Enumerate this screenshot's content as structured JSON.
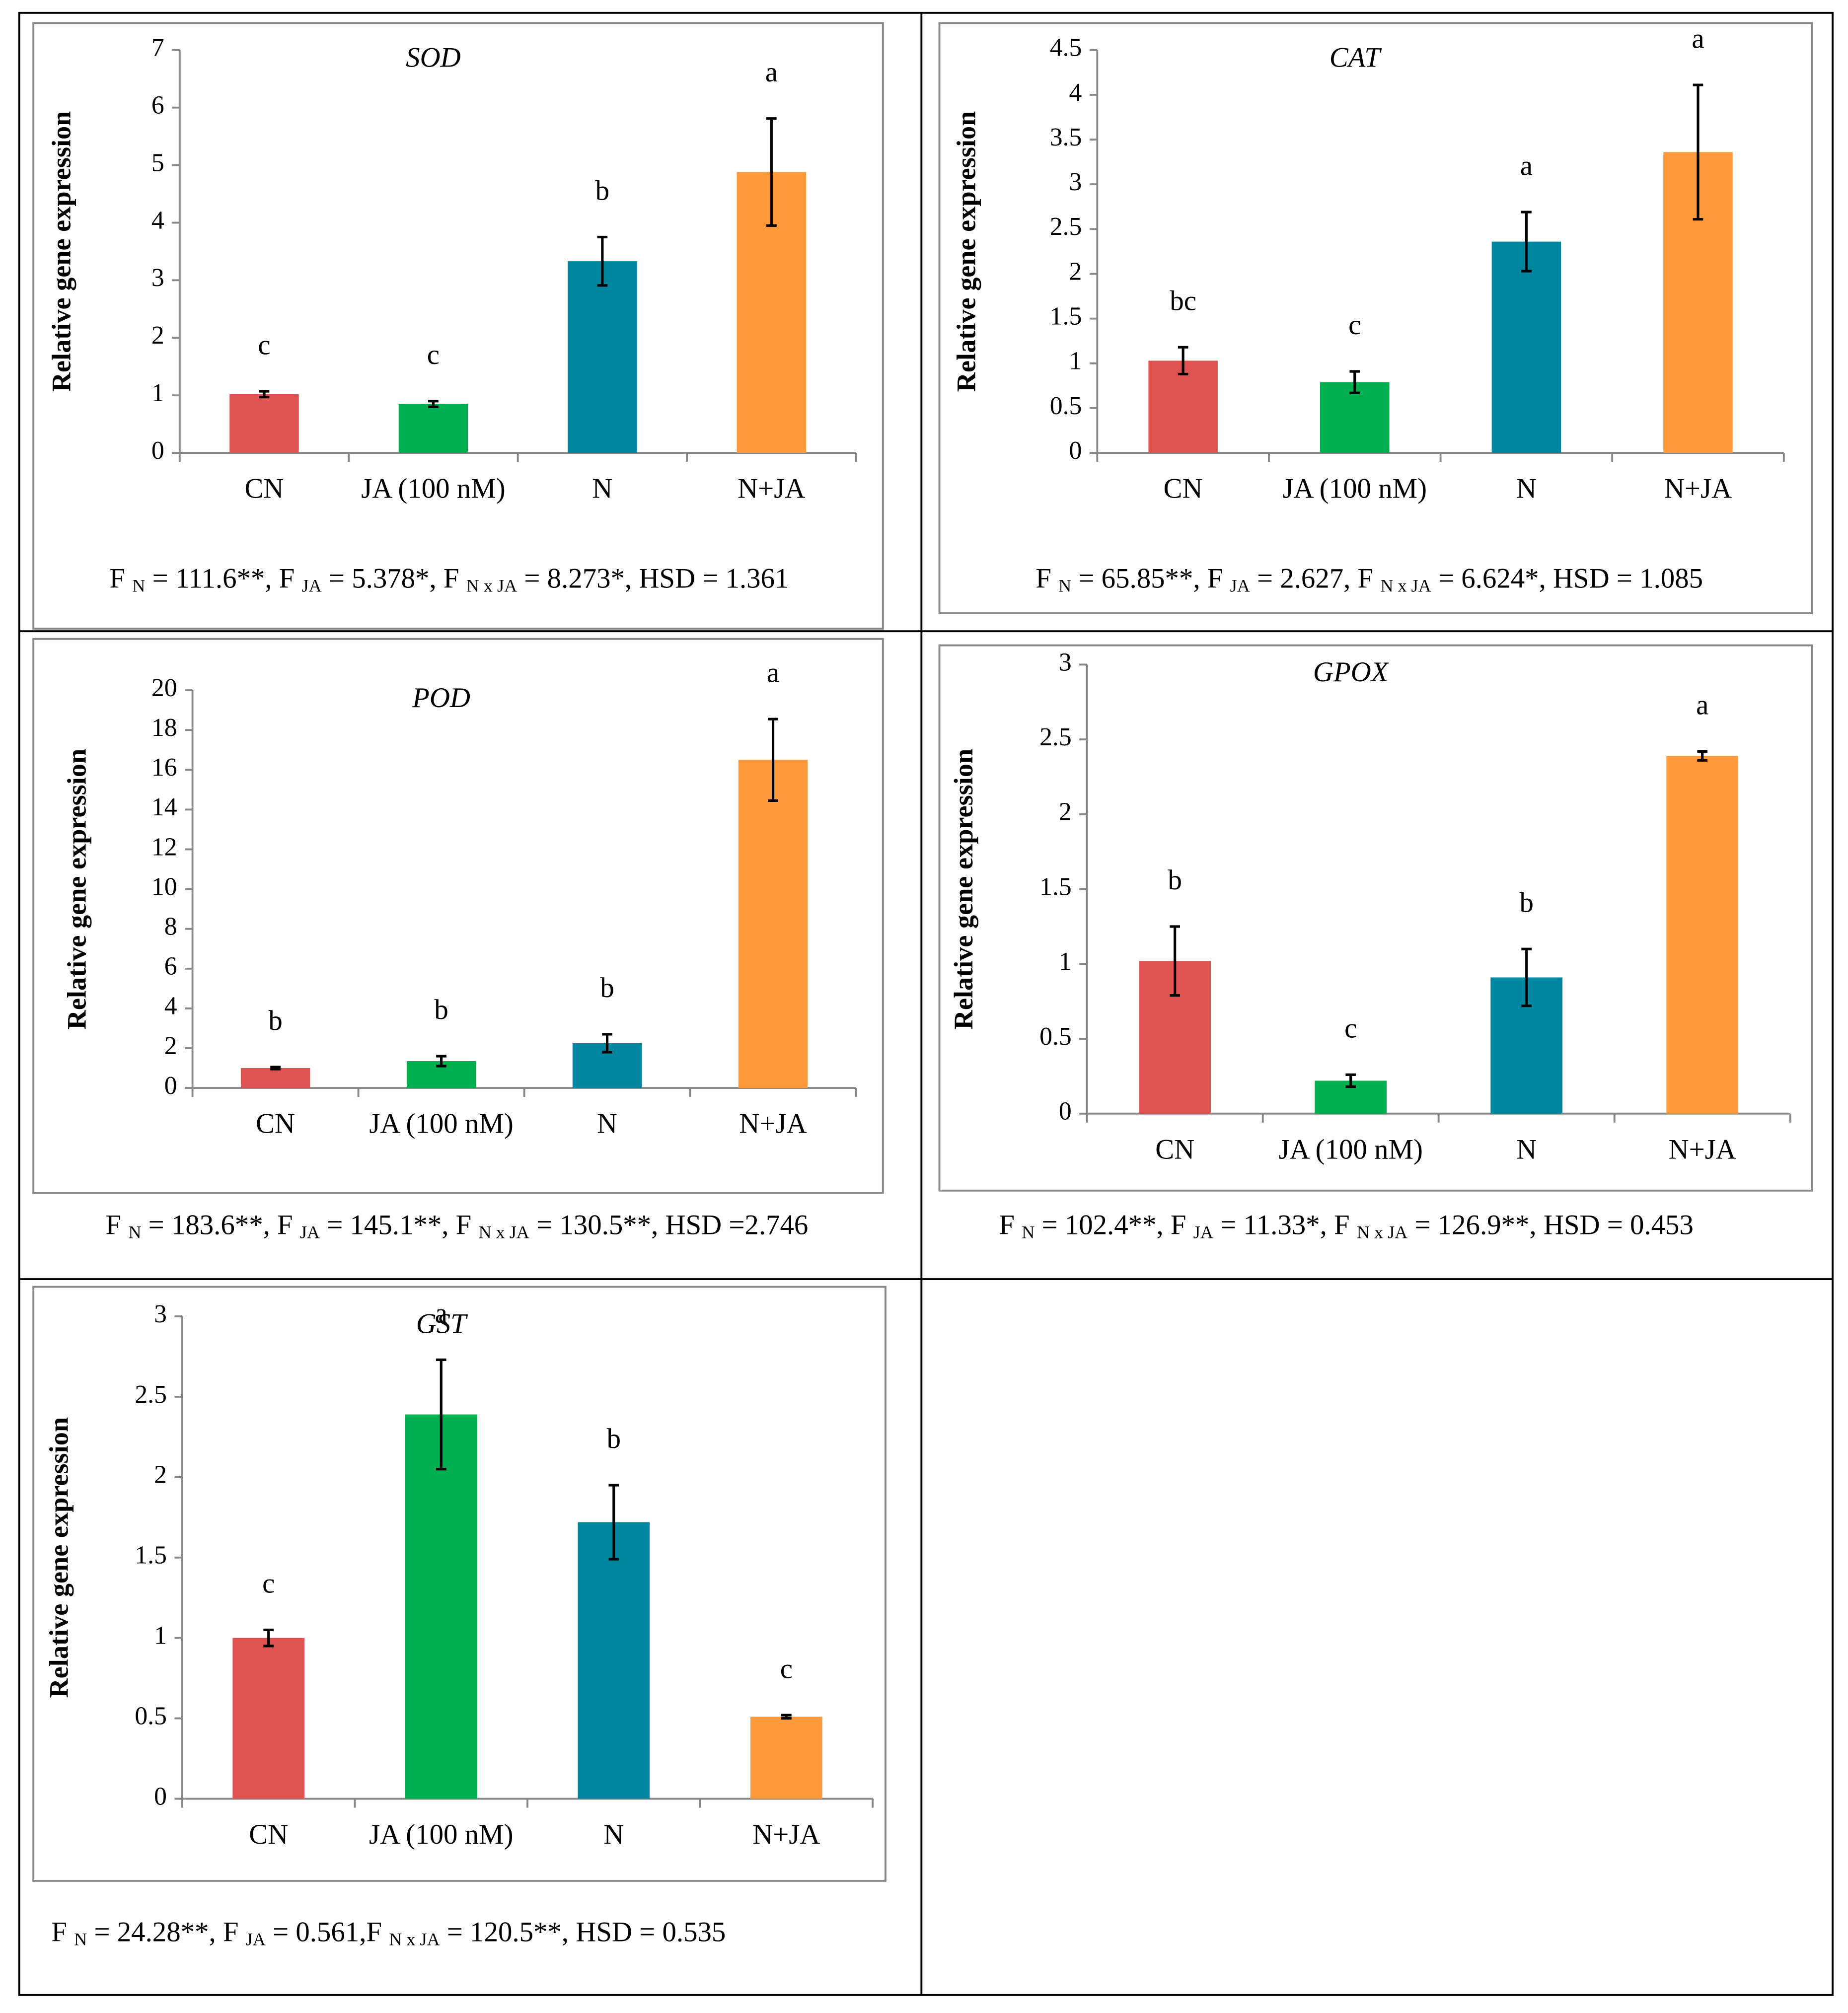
{
  "chart_data": [
    {
      "type": "bar",
      "title": "SOD",
      "y_label": "Relative gene expression",
      "categories": [
        "CN",
        "JA (100 nM)",
        "N",
        "N+JA"
      ],
      "values": [
        1.02,
        0.85,
        3.33,
        4.88
      ],
      "errors": [
        0.05,
        0.05,
        0.42,
        0.93
      ],
      "letters": [
        "c",
        "c",
        "b",
        "a"
      ],
      "colors": [
        "#df5353",
        "#00b050",
        "#00879f",
        "#ff9a3c"
      ],
      "ylim": [
        0,
        7
      ],
      "yticks": [
        0,
        1,
        2,
        3,
        4,
        5,
        6,
        7
      ],
      "stats": [
        "F ",
        "N",
        " = 111.6**, F ",
        "JA",
        " = 5.378*, F ",
        "N x JA",
        " = 8.273*, HSD = 1.361"
      ]
    },
    {
      "type": "bar",
      "title": "CAT",
      "y_label": "Relative gene expression",
      "categories": [
        "CN",
        "JA (100 nM)",
        "N",
        "N+JA"
      ],
      "values": [
        1.03,
        0.79,
        2.36,
        3.36
      ],
      "errors": [
        0.15,
        0.12,
        0.33,
        0.75
      ],
      "letters": [
        "bc",
        "c",
        "a",
        "a"
      ],
      "colors": [
        "#df5353",
        "#00b050",
        "#00879f",
        "#ff9a3c"
      ],
      "ylim": [
        0,
        4.5
      ],
      "yticks": [
        0,
        0.5,
        1,
        1.5,
        2,
        2.5,
        3,
        3.5,
        4,
        4.5
      ],
      "stats": [
        "F ",
        "N",
        " = 65.85**, F ",
        "JA",
        " = 2.627, F ",
        "N x JA",
        " = 6.624*, HSD = 1.085"
      ]
    },
    {
      "type": "bar",
      "title": "POD",
      "y_label": "Relative gene expression",
      "categories": [
        "CN",
        "JA (100 nM)",
        "N",
        "N+JA"
      ],
      "values": [
        1.0,
        1.35,
        2.25,
        16.5
      ],
      "errors": [
        0.05,
        0.25,
        0.45,
        2.05
      ],
      "letters": [
        "b",
        "b",
        "b",
        "a"
      ],
      "colors": [
        "#df5353",
        "#00b050",
        "#00879f",
        "#ff9a3c"
      ],
      "ylim": [
        0,
        20
      ],
      "yticks": [
        0,
        2,
        4,
        6,
        8,
        10,
        12,
        14,
        16,
        18,
        20
      ],
      "stats": [
        "F ",
        "N",
        " = 183.6**, F ",
        "JA",
        " = 145.1**, F ",
        "N x JA",
        " = 130.5**, HSD =2.746"
      ]
    },
    {
      "type": "bar",
      "title": "GPOX",
      "y_label": "Relative gene expression",
      "categories": [
        "CN",
        "JA (100 nM)",
        "N",
        "N+JA"
      ],
      "values": [
        1.02,
        0.22,
        0.91,
        2.39
      ],
      "errors": [
        0.23,
        0.04,
        0.19,
        0.03
      ],
      "letters": [
        "b",
        "c",
        "b",
        "a"
      ],
      "colors": [
        "#df5353",
        "#00b050",
        "#00879f",
        "#ff9a3c"
      ],
      "ylim": [
        0,
        3
      ],
      "yticks": [
        0,
        0.5,
        1,
        1.5,
        2,
        2.5,
        3
      ],
      "stats": [
        "F ",
        "N",
        " = 102.4**, F ",
        "JA",
        " = 11.33*, F ",
        "N x JA",
        " = 126.9**, HSD = 0.453"
      ]
    },
    {
      "type": "bar",
      "title": "GST",
      "y_label": "Relative gene expression",
      "categories": [
        "CN",
        "JA (100 nM)",
        "N",
        "N+JA"
      ],
      "values": [
        1.0,
        2.39,
        1.72,
        0.51
      ],
      "errors": [
        0.05,
        0.34,
        0.23,
        0.01
      ],
      "letters": [
        "c",
        "a",
        "b",
        "c"
      ],
      "colors": [
        "#df5353",
        "#00b050",
        "#00879f",
        "#ff9a3c"
      ],
      "ylim": [
        0,
        3
      ],
      "yticks": [
        0,
        0.5,
        1,
        1.5,
        2,
        2.5,
        3
      ],
      "stats": [
        "F ",
        "N",
        " = 24.28**, F ",
        "JA",
        " = 0.561,F ",
        "N x JA",
        " = 120.5**, HSD = 0.535"
      ]
    }
  ]
}
